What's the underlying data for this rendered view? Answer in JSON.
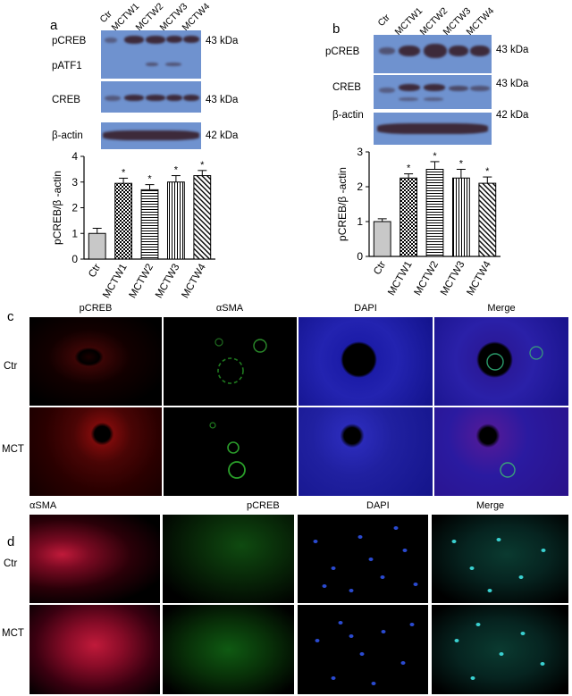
{
  "panel_a": {
    "letter": "a",
    "lanes": [
      "Ctr",
      "MCTW1",
      "MCTW2",
      "MCTW3",
      "MCTW4"
    ],
    "blot_labels": [
      "pCREB",
      "pATF1",
      "CREB",
      "β-actin"
    ],
    "kda": [
      "43 kDa",
      "43 kDa",
      "42 kDa"
    ]
  },
  "panel_b": {
    "letter": "b",
    "lanes": [
      "Ctr",
      "MCTW1",
      "MCTW2",
      "MCTW3",
      "MCTW4"
    ],
    "blot_labels": [
      "pCREB",
      "CREB",
      "β-actin"
    ],
    "kda": [
      "43 kDa",
      "43 kDa",
      "42 kDa"
    ]
  },
  "chart_data": [
    {
      "type": "bar",
      "categories": [
        "Ctr",
        "MCTW1",
        "MCTW2",
        "MCTW3",
        "MCTW4"
      ],
      "values": [
        1.0,
        2.95,
        2.7,
        3.0,
        3.25
      ],
      "errors": [
        0.2,
        0.2,
        0.2,
        0.25,
        0.2
      ],
      "significance": [
        "",
        "*",
        "*",
        "*",
        "*"
      ],
      "ylabel": "pCREB/β -actin",
      "ylim": [
        0,
        4
      ],
      "yticks": [
        "0",
        "1",
        "2",
        "3",
        "4"
      ],
      "patterns": [
        "grey",
        "checker",
        "hstripe",
        "vstripe",
        "diagonal"
      ]
    },
    {
      "type": "bar",
      "categories": [
        "Ctr",
        "MCTW1",
        "MCTW2",
        "MCTW3",
        "MCTW4"
      ],
      "values": [
        1.0,
        2.25,
        2.5,
        2.25,
        2.1
      ],
      "errors": [
        0.08,
        0.12,
        0.22,
        0.25,
        0.18
      ],
      "significance": [
        "",
        "*",
        "*",
        "*",
        "*"
      ],
      "ylabel": "pCREB/β -actin",
      "ylim": [
        0,
        3
      ],
      "yticks": [
        "0",
        "1",
        "2",
        "3"
      ],
      "patterns": [
        "grey",
        "checker",
        "hstripe",
        "vstripe",
        "diagonal"
      ]
    }
  ],
  "panel_c": {
    "letter": "c",
    "columns": [
      "pCREB",
      "αSMA",
      "DAPI",
      "Merge"
    ],
    "rows": [
      "Ctr",
      "MCT"
    ]
  },
  "panel_d": {
    "letter": "d",
    "columns": [
      "αSMA",
      "pCREB",
      "DAPI",
      "Merge"
    ],
    "rows": [
      "Ctr",
      "MCT"
    ]
  }
}
